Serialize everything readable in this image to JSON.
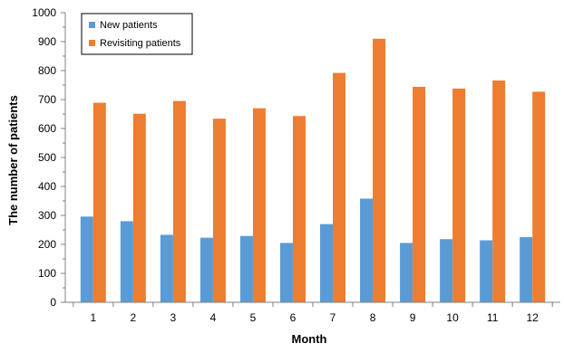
{
  "chart_data": {
    "type": "bar",
    "title": "",
    "xlabel": "Month",
    "ylabel": "The number of patients",
    "categories": [
      "1",
      "2",
      "3",
      "4",
      "5",
      "6",
      "7",
      "8",
      "9",
      "10",
      "11",
      "12"
    ],
    "series": [
      {
        "name": "New patients",
        "color": "#5B9BD5",
        "values": [
          296,
          280,
          233,
          223,
          229,
          205,
          270,
          358,
          205,
          218,
          214,
          225
        ]
      },
      {
        "name": "Revisiting patients",
        "color": "#ED7D31",
        "values": [
          689,
          651,
          695,
          634,
          670,
          643,
          792,
          910,
          744,
          738,
          766,
          727
        ]
      }
    ],
    "ylim": [
      0,
      1000
    ],
    "yticks": [
      "0",
      "100",
      "200",
      "300",
      "400",
      "500",
      "600",
      "700",
      "800",
      "900",
      "1000"
    ],
    "grid": false,
    "legend_position": "top-left"
  }
}
